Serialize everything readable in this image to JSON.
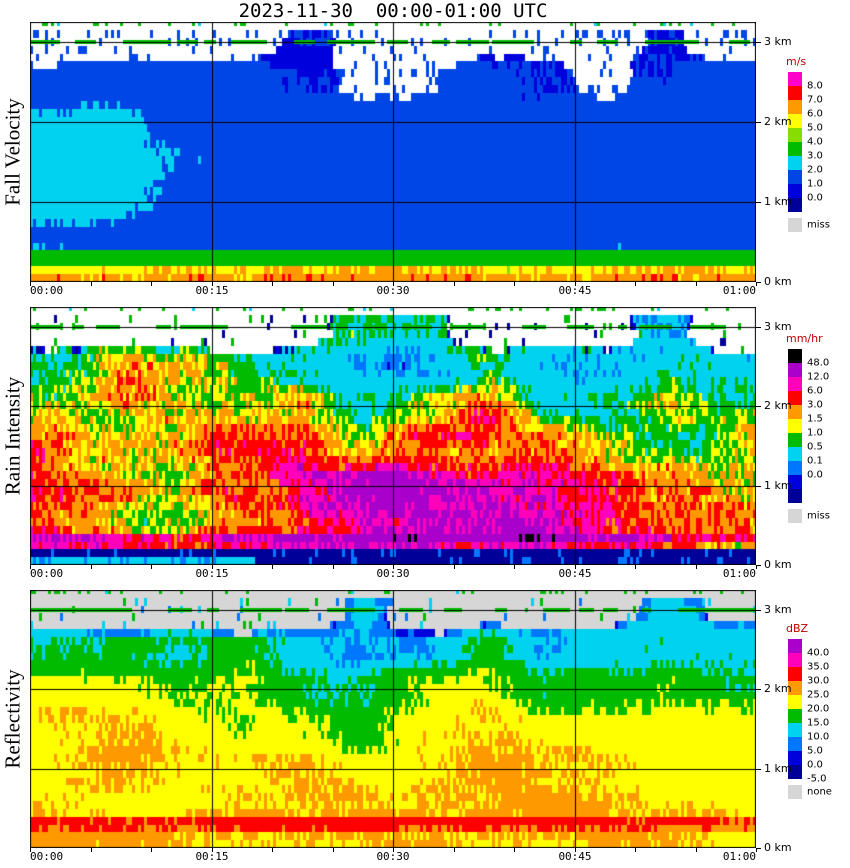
{
  "title": "2023-11-30  00:00-01:00 UTC",
  "panels": [
    {
      "ylabel": "Fall Velocity",
      "x_ticks": [
        {
          "label": "00:00",
          "t": 0
        },
        {
          "label": "00:15",
          "t": 0.25
        },
        {
          "label": "00:30",
          "t": 0.5
        },
        {
          "label": "00:45",
          "t": 0.75
        },
        {
          "label": "01:00",
          "t": 1
        }
      ],
      "y_ticks": [
        {
          "label": "3 km",
          "km": 3
        },
        {
          "label": "2 km",
          "km": 2
        },
        {
          "label": "1 km",
          "km": 1
        },
        {
          "label": "0 km",
          "km": 0
        }
      ],
      "legend": {
        "unit": "m/s",
        "items": [
          {
            "color": "#FF00CC",
            "label": "8.0"
          },
          {
            "color": "#FF0000",
            "label": "7.0"
          },
          {
            "color": "#FF9900",
            "label": "6.0"
          },
          {
            "color": "#FFFF00",
            "label": "5.0"
          },
          {
            "color": "#88DD00",
            "label": "4.0"
          },
          {
            "color": "#00BB00",
            "label": "3.0"
          },
          {
            "color": "#00D2F0",
            "label": "2.0"
          },
          {
            "color": "#0046E6",
            "label": "1.0"
          },
          {
            "color": "#0000DD",
            "label": "0.0"
          },
          {
            "color": "#000099",
            "label": ""
          }
        ],
        "missing": {
          "color": "#D6D6D6",
          "label": "miss"
        }
      }
    },
    {
      "ylabel": "Rain Intensity",
      "x_ticks": [
        {
          "label": "00:00",
          "t": 0
        },
        {
          "label": "00:15",
          "t": 0.25
        },
        {
          "label": "00:30",
          "t": 0.5
        },
        {
          "label": "00:45",
          "t": 0.75
        },
        {
          "label": "01:00",
          "t": 1
        }
      ],
      "y_ticks": [
        {
          "label": "3 km",
          "km": 3
        },
        {
          "label": "2 km",
          "km": 2
        },
        {
          "label": "1 km",
          "km": 1
        },
        {
          "label": "0 km",
          "km": 0
        }
      ],
      "legend": {
        "unit": "mm/hr",
        "items": [
          {
            "color": "#000000",
            "label": "48.0"
          },
          {
            "color": "#AA00CC",
            "label": "12.0"
          },
          {
            "color": "#FF00BB",
            "label": "6.0"
          },
          {
            "color": "#FF0000",
            "label": "3.0"
          },
          {
            "color": "#FF9900",
            "label": "1.5"
          },
          {
            "color": "#FFFF00",
            "label": "1.0"
          },
          {
            "color": "#00BB00",
            "label": "0.5"
          },
          {
            "color": "#00D2F0",
            "label": "0.1"
          },
          {
            "color": "#0077FF",
            "label": "0.0"
          },
          {
            "color": "#0000DD",
            "label": ""
          },
          {
            "color": "#000099",
            "label": ""
          }
        ],
        "missing": {
          "color": "#D6D6D6",
          "label": "miss"
        }
      }
    },
    {
      "ylabel": "Reflectivity",
      "x_ticks": [
        {
          "label": "00:00",
          "t": 0
        },
        {
          "label": "00:15",
          "t": 0.25
        },
        {
          "label": "00:30",
          "t": 0.5
        },
        {
          "label": "00:45",
          "t": 0.75
        },
        {
          "label": "01:00",
          "t": 1
        }
      ],
      "y_ticks": [
        {
          "label": "3 km",
          "km": 3
        },
        {
          "label": "2 km",
          "km": 2
        },
        {
          "label": "1 km",
          "km": 1
        },
        {
          "label": "0 km",
          "km": 0
        }
      ],
      "legend": {
        "unit": "dBZ",
        "items": [
          {
            "color": "#AA00CC",
            "label": "40.0"
          },
          {
            "color": "#FF00BB",
            "label": "35.0"
          },
          {
            "color": "#FF0000",
            "label": "30.0"
          },
          {
            "color": "#FF9900",
            "label": "25.0"
          },
          {
            "color": "#FFFF00",
            "label": "20.0"
          },
          {
            "color": "#00BB00",
            "label": "15.0"
          },
          {
            "color": "#00D2F0",
            "label": "10.0"
          },
          {
            "color": "#0077FF",
            "label": "5.0"
          },
          {
            "color": "#0000DD",
            "label": "0.0"
          },
          {
            "color": "#000099",
            "label": "-5.0"
          }
        ],
        "missing": {
          "color": "#D6D6D6",
          "label": "none"
        }
      }
    }
  ],
  "chart_data": [
    {
      "type": "heatmap",
      "title": "Fall Velocity",
      "unit": "m/s",
      "x_range": [
        "00:00",
        "01:00"
      ],
      "y_range_km": [
        0,
        3.25
      ],
      "level_boundaries": [
        0,
        1,
        2,
        3,
        4,
        5,
        6,
        7,
        8
      ],
      "x_grid": [
        "00:00",
        "00:05",
        "00:10",
        "00:15",
        "00:20",
        "00:25",
        "00:30",
        "00:35",
        "00:40",
        "00:45",
        "00:50",
        "00:55"
      ],
      "heights_km": [
        3.0,
        2.5,
        2.0,
        1.5,
        1.0,
        0.5,
        0.3,
        0.1
      ],
      "values": [
        [
          null,
          null,
          null,
          null,
          1.0,
          null,
          null,
          null,
          null,
          null,
          1.0,
          null
        ],
        [
          1.5,
          1.5,
          1.5,
          1.5,
          1.0,
          null,
          null,
          1.5,
          1.0,
          null,
          1.0,
          1.5
        ],
        [
          2.2,
          2.5,
          1.5,
          1.5,
          1.5,
          1.5,
          1.2,
          1.5,
          1.5,
          1.2,
          1.5,
          1.5
        ],
        [
          2.6,
          2.6,
          2.1,
          1.5,
          1.5,
          1.5,
          1.5,
          1.5,
          1.5,
          1.5,
          1.5,
          1.5
        ],
        [
          2.6,
          2.2,
          1.6,
          1.5,
          1.5,
          1.5,
          1.5,
          1.5,
          1.5,
          1.5,
          1.5,
          1.5
        ],
        [
          1.6,
          1.5,
          1.5,
          1.5,
          1.5,
          1.5,
          1.5,
          1.5,
          1.5,
          1.5,
          1.5,
          1.5
        ],
        [
          3.5,
          3.5,
          3.4,
          3.5,
          3.5,
          3.5,
          3.5,
          3.4,
          3.5,
          3.5,
          3.5,
          3.5
        ],
        [
          5.5,
          6.2,
          5.0,
          6.5,
          5.2,
          6.0,
          5.6,
          6.3,
          6.6,
          5.1,
          6.0,
          6.4
        ]
      ]
    },
    {
      "type": "heatmap",
      "title": "Rain Intensity",
      "unit": "mm/hr",
      "x_range": [
        "00:00",
        "01:00"
      ],
      "y_range_km": [
        0,
        3.25
      ],
      "level_boundaries": [
        0.0,
        0.1,
        0.5,
        1.0,
        1.5,
        3.0,
        6.0,
        12.0,
        48.0
      ],
      "x_grid": [
        "00:00",
        "00:05",
        "00:10",
        "00:15",
        "00:20",
        "00:25",
        "00:30",
        "00:35",
        "00:40",
        "00:45",
        "00:50",
        "00:55"
      ],
      "heights_km": [
        3.0,
        2.5,
        2.0,
        1.5,
        1.0,
        0.5,
        0.3,
        0.1
      ],
      "values": [
        [
          null,
          null,
          null,
          null,
          null,
          0.3,
          0.3,
          null,
          null,
          null,
          0.2,
          null
        ],
        [
          0.5,
          1.0,
          0.8,
          0.5,
          0.3,
          0.1,
          0.1,
          0.5,
          0.1,
          0.1,
          0.3,
          0.3
        ],
        [
          2,
          3,
          1.5,
          1,
          1.5,
          0.3,
          1,
          3,
          0.2,
          0.3,
          1,
          0.5
        ],
        [
          3,
          4,
          2,
          3,
          4,
          2,
          6,
          8,
          5,
          1.5,
          1.5,
          1
        ],
        [
          4,
          3,
          2,
          4,
          6,
          8,
          10,
          10,
          8,
          4,
          2,
          2
        ],
        [
          3,
          2.5,
          2,
          4,
          8,
          10,
          10,
          9,
          8,
          6,
          3,
          2
        ],
        [
          8,
          6,
          6,
          10,
          15,
          16,
          15,
          13,
          12,
          10,
          6,
          4
        ],
        [
          0.3,
          0.3,
          0.2,
          0.01,
          0.01,
          0.01,
          0.01,
          0.01,
          0.01,
          0.01,
          0.01,
          0.01
        ]
      ]
    },
    {
      "type": "heatmap",
      "title": "Reflectivity",
      "unit": "dBZ",
      "x_range": [
        "00:00",
        "01:00"
      ],
      "y_range_km": [
        0,
        3.25
      ],
      "level_boundaries": [
        -5,
        0,
        5,
        10,
        15,
        20,
        25,
        30,
        35,
        40
      ],
      "x_grid": [
        "00:00",
        "00:05",
        "00:10",
        "00:15",
        "00:20",
        "00:25",
        "00:30",
        "00:35",
        "00:40",
        "00:45",
        "00:50",
        "00:55"
      ],
      "heights_km": [
        3.0,
        2.5,
        2.0,
        1.5,
        1.0,
        0.5,
        0.3,
        0.1
      ],
      "values": [
        [
          null,
          null,
          null,
          null,
          null,
          12,
          null,
          null,
          null,
          null,
          12,
          null
        ],
        [
          17,
          17,
          15,
          17,
          12,
          10,
          12,
          17,
          10,
          12,
          13,
          12
        ],
        [
          22,
          22,
          20,
          22,
          17,
          16,
          20,
          22,
          15,
          17,
          18,
          16
        ],
        [
          23,
          24,
          22,
          23,
          22,
          17,
          24,
          24,
          22,
          21,
          22,
          21
        ],
        [
          24,
          26,
          23,
          23,
          24,
          24,
          26,
          26,
          24,
          24,
          23,
          22
        ],
        [
          26,
          24,
          23,
          24,
          26,
          26,
          26,
          26,
          26,
          24,
          24,
          23
        ],
        [
          31,
          30,
          29,
          31,
          32,
          32,
          32,
          31,
          31,
          31,
          30,
          30
        ],
        [
          27,
          26,
          24,
          24,
          26,
          26,
          27,
          26,
          26,
          28,
          26,
          24
        ]
      ]
    }
  ]
}
